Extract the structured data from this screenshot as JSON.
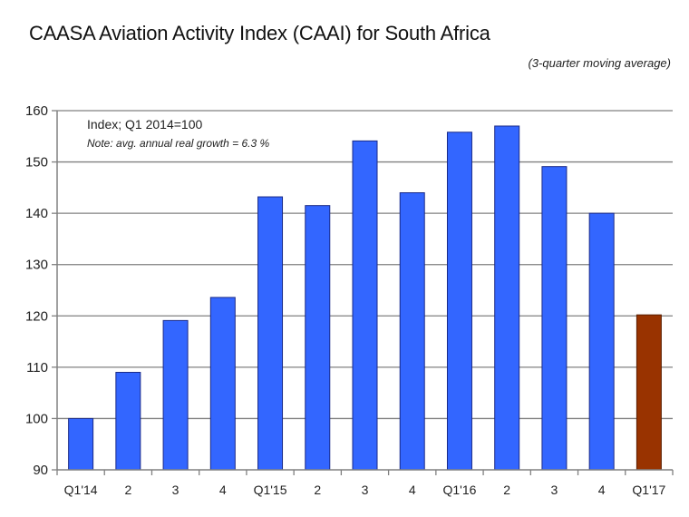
{
  "chart_data": {
    "type": "bar",
    "title": "CAASA Aviation Activity Index (CAAI) for South Africa",
    "subtitle": "(3-quarter moving average)",
    "annotations": [
      "Index; Q1 2014=100",
      "Note: avg. annual real growth = 6.3 %"
    ],
    "xlabel": "",
    "ylabel": "",
    "categories": [
      "Q1'14",
      "2",
      "3",
      "4",
      "Q1'15",
      "2",
      "3",
      "4",
      "Q1'16",
      "2",
      "3",
      "4",
      "Q1'17"
    ],
    "values": [
      100.0,
      109.0,
      119.1,
      123.6,
      143.2,
      141.5,
      154.1,
      144.0,
      155.8,
      157.0,
      149.1,
      140.0,
      120.2
    ],
    "bar_colors": [
      "#3366ff",
      "#3366ff",
      "#3366ff",
      "#3366ff",
      "#3366ff",
      "#3366ff",
      "#3366ff",
      "#3366ff",
      "#3366ff",
      "#3366ff",
      "#3366ff",
      "#3366ff",
      "#993300"
    ],
    "ylim": [
      90,
      160
    ],
    "yticks": [
      90,
      100,
      110,
      120,
      130,
      140,
      150,
      160
    ],
    "grid": true,
    "legend": "none"
  }
}
